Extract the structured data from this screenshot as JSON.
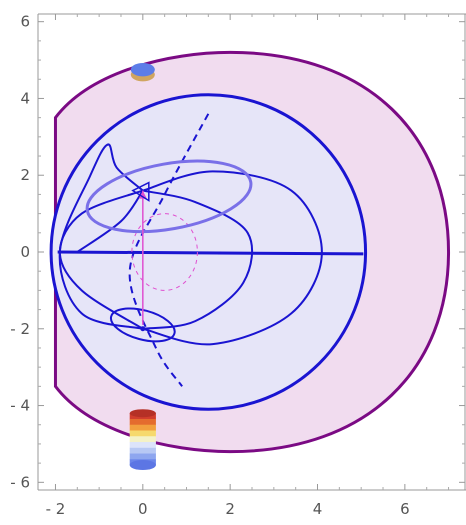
{
  "chart_data": {
    "type": "diagram-plot",
    "xlim": [
      -2.4,
      7.4
    ],
    "ylim": [
      -6.2,
      6.2
    ],
    "xticks": [
      -2,
      0,
      2,
      4,
      6
    ],
    "yticks": [
      -6,
      -4,
      -2,
      0,
      2,
      4,
      6
    ],
    "x_tick_labels": [
      "- 2",
      "0",
      "2",
      "4",
      "6"
    ],
    "y_tick_labels": [
      "- 6",
      "- 4",
      "- 2",
      "0",
      "2",
      "4",
      "6"
    ],
    "frame": true,
    "grid": false,
    "colors": {
      "outer_fill": "#f1dcef",
      "outer_stroke": "#7b0a84",
      "sphere_fill": "#e6e5f8",
      "blue": "#1a14d1",
      "light_blue": "#7a70e8",
      "magenta": "#e050d0",
      "disk_top": "#5c7de8",
      "disk_bottom": "#d0a560"
    },
    "outer_region": {
      "description": "closed boundary with straight left side at x=-2",
      "left_x": -2.0,
      "top_left": [
        -1.5,
        3.5
      ],
      "top": [
        2.0,
        5.2
      ],
      "right": [
        7.0,
        0.0
      ],
      "bottom": [
        2.0,
        -5.2
      ],
      "bottom_left": [
        -1.5,
        -3.5
      ]
    },
    "sphere": {
      "center": [
        1.5,
        0.0
      ],
      "radius": 3.6
    },
    "equator_line": {
      "from": [
        -1.95,
        0.0
      ],
      "to": [
        5.05,
        -0.05
      ]
    },
    "top_ellipse": {
      "center": [
        0.6,
        1.45
      ],
      "rx": 1.9,
      "ry": 0.85
    },
    "bottom_ellipse": {
      "center": [
        0.0,
        -1.9
      ],
      "rx": 0.75,
      "ry": 0.38
    },
    "top_point": [
      0.0,
      1.6
    ],
    "bottom_point": [
      0.0,
      -2.0
    ],
    "arrow": {
      "from": [
        0.0,
        -1.9
      ],
      "to": [
        0.0,
        1.6
      ]
    },
    "dashed_meridian": [
      [
        1.5,
        3.6
      ],
      [
        0.5,
        1.5
      ],
      [
        -0.3,
        -0.5
      ],
      [
        0.3,
        -2.5
      ],
      [
        0.9,
        -3.5
      ]
    ],
    "dashed_circle": {
      "center": [
        0.5,
        0.0
      ],
      "rx": 0.75,
      "ry": 1.0
    },
    "field_curves": [
      {
        "points": [
          [
            0.0,
            1.6
          ],
          [
            -1.4,
            1.0
          ],
          [
            -1.9,
            0.0
          ],
          [
            -1.4,
            -1.0
          ],
          [
            0.0,
            -2.0
          ]
        ]
      },
      {
        "points": [
          [
            0.0,
            1.6
          ],
          [
            -0.5,
            0.8
          ],
          [
            -1.5,
            0.0
          ]
        ]
      },
      {
        "points": [
          [
            0.0,
            1.6
          ],
          [
            1.2,
            1.3
          ],
          [
            2.4,
            0.5
          ],
          [
            2.3,
            -0.8
          ],
          [
            1.2,
            -1.8
          ],
          [
            0.0,
            -2.0
          ]
        ]
      },
      {
        "points": [
          [
            0.0,
            1.6
          ],
          [
            1.6,
            2.1
          ],
          [
            3.4,
            1.6
          ],
          [
            4.1,
            0.0
          ],
          [
            3.4,
            -1.6
          ],
          [
            1.6,
            -2.4
          ],
          [
            0.0,
            -2.0
          ]
        ]
      },
      {
        "points": [
          [
            0.0,
            1.6
          ],
          [
            -0.6,
            2.2
          ],
          [
            -0.8,
            2.8
          ],
          [
            -1.2,
            2.0
          ],
          [
            -1.9,
            0.0
          ],
          [
            -1.4,
            -1.6
          ],
          [
            0.0,
            -2.0
          ]
        ]
      }
    ],
    "disk_top": {
      "center": [
        0.0,
        4.75
      ],
      "width": 0.55,
      "height": 0.35
    },
    "cylinder_bottom": {
      "center_x": 0.0,
      "top_y": -4.2,
      "bottom_y": -5.55,
      "width": 0.6
    }
  }
}
